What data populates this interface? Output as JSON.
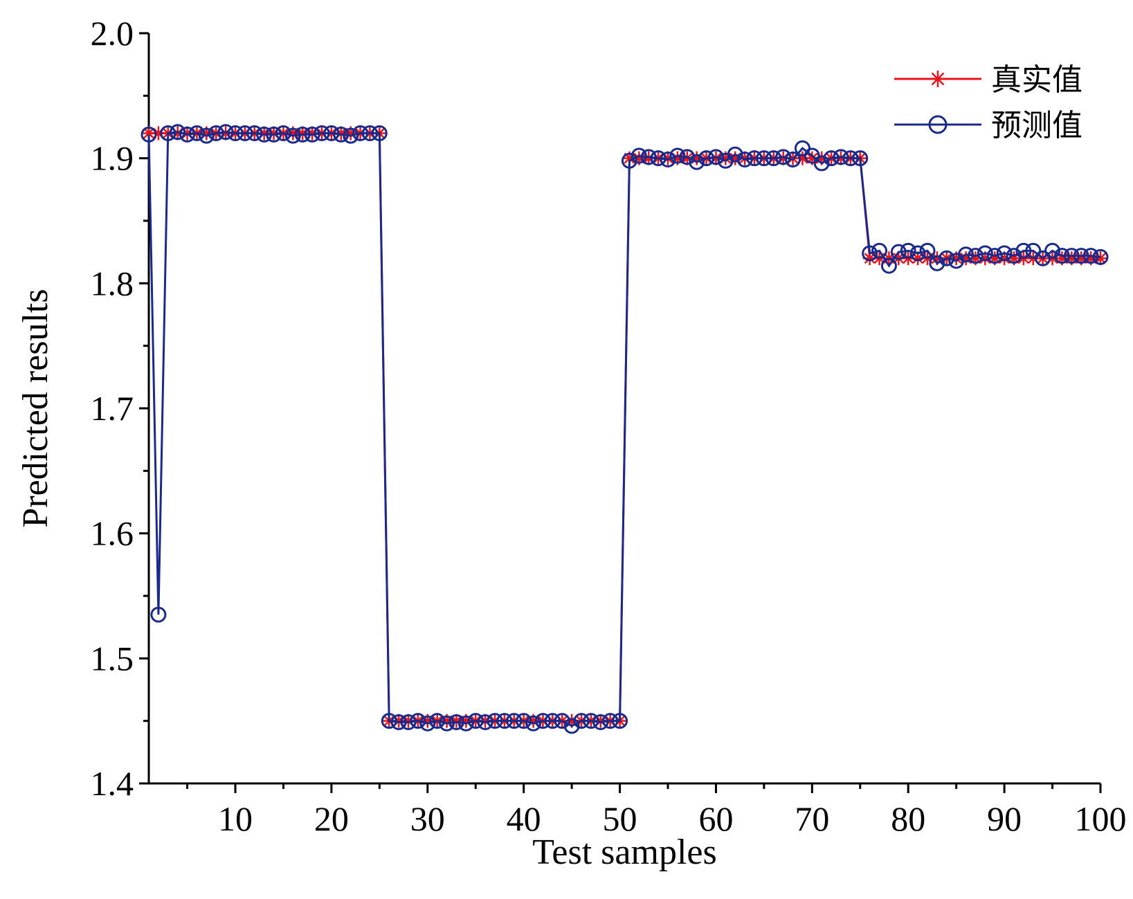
{
  "chart_data": {
    "type": "line",
    "xlabel": "Test samples",
    "ylabel": "Predicted results",
    "xlim": [
      1,
      100
    ],
    "ylim": [
      1.4,
      2.0
    ],
    "xticks": [
      10,
      20,
      30,
      40,
      50,
      60,
      70,
      80,
      90,
      100
    ],
    "xtick_labels": [
      "10",
      "20",
      "30",
      "40",
      "50",
      "60",
      "70",
      "80",
      "90",
      "100"
    ],
    "yticks": [
      1.4,
      1.5,
      1.6,
      1.7,
      1.8,
      1.9,
      2.0
    ],
    "ytick_labels": [
      "1.4",
      "1.5",
      "1.6",
      "1.7",
      "1.8",
      "1.9",
      "2.0"
    ],
    "legend_position": "top-right",
    "grid": false,
    "x": [
      1,
      2,
      3,
      4,
      5,
      6,
      7,
      8,
      9,
      10,
      11,
      12,
      13,
      14,
      15,
      16,
      17,
      18,
      19,
      20,
      21,
      22,
      23,
      24,
      25,
      26,
      27,
      28,
      29,
      30,
      31,
      32,
      33,
      34,
      35,
      36,
      37,
      38,
      39,
      40,
      41,
      42,
      43,
      44,
      45,
      46,
      47,
      48,
      49,
      50,
      51,
      52,
      53,
      54,
      55,
      56,
      57,
      58,
      59,
      60,
      61,
      62,
      63,
      64,
      65,
      66,
      67,
      68,
      69,
      70,
      71,
      72,
      73,
      74,
      75,
      76,
      77,
      78,
      79,
      80,
      81,
      82,
      83,
      84,
      85,
      86,
      87,
      88,
      89,
      90,
      91,
      92,
      93,
      94,
      95,
      96,
      97,
      98,
      99,
      100
    ],
    "series": [
      {
        "name": "真实值",
        "color": "#e8131b",
        "marker": "asterisk",
        "values": [
          1.92,
          1.92,
          1.92,
          1.92,
          1.92,
          1.92,
          1.92,
          1.92,
          1.92,
          1.92,
          1.92,
          1.92,
          1.92,
          1.92,
          1.92,
          1.92,
          1.92,
          1.92,
          1.92,
          1.92,
          1.92,
          1.92,
          1.92,
          1.92,
          1.92,
          1.45,
          1.45,
          1.45,
          1.45,
          1.45,
          1.45,
          1.45,
          1.45,
          1.45,
          1.45,
          1.45,
          1.45,
          1.45,
          1.45,
          1.45,
          1.45,
          1.45,
          1.45,
          1.45,
          1.45,
          1.45,
          1.45,
          1.45,
          1.45,
          1.45,
          1.9,
          1.9,
          1.9,
          1.9,
          1.9,
          1.9,
          1.9,
          1.9,
          1.9,
          1.9,
          1.9,
          1.9,
          1.9,
          1.9,
          1.9,
          1.9,
          1.9,
          1.9,
          1.9,
          1.9,
          1.9,
          1.9,
          1.9,
          1.9,
          1.9,
          1.82,
          1.82,
          1.82,
          1.82,
          1.82,
          1.82,
          1.82,
          1.82,
          1.82,
          1.82,
          1.82,
          1.82,
          1.82,
          1.82,
          1.82,
          1.82,
          1.82,
          1.82,
          1.82,
          1.82,
          1.82,
          1.82,
          1.82,
          1.82,
          1.82
        ]
      },
      {
        "name": "预测值",
        "color": "#1a2a8c",
        "marker": "circle",
        "values": [
          1.919,
          1.535,
          1.92,
          1.921,
          1.919,
          1.92,
          1.918,
          1.92,
          1.921,
          1.92,
          1.92,
          1.92,
          1.919,
          1.919,
          1.92,
          1.918,
          1.919,
          1.919,
          1.92,
          1.92,
          1.919,
          1.918,
          1.92,
          1.92,
          1.92,
          1.45,
          1.449,
          1.449,
          1.45,
          1.448,
          1.45,
          1.448,
          1.449,
          1.448,
          1.45,
          1.449,
          1.45,
          1.45,
          1.45,
          1.45,
          1.448,
          1.45,
          1.45,
          1.45,
          1.446,
          1.45,
          1.45,
          1.449,
          1.45,
          1.45,
          1.898,
          1.902,
          1.901,
          1.9,
          1.899,
          1.902,
          1.901,
          1.897,
          1.9,
          1.901,
          1.898,
          1.903,
          1.899,
          1.9,
          1.9,
          1.9,
          1.901,
          1.899,
          1.908,
          1.902,
          1.896,
          1.9,
          1.901,
          1.9,
          1.9,
          1.824,
          1.826,
          1.814,
          1.825,
          1.826,
          1.824,
          1.826,
          1.816,
          1.82,
          1.818,
          1.823,
          1.822,
          1.824,
          1.822,
          1.824,
          1.822,
          1.826,
          1.826,
          1.82,
          1.826,
          1.822,
          1.822,
          1.822,
          1.822,
          1.821
        ]
      }
    ]
  }
}
